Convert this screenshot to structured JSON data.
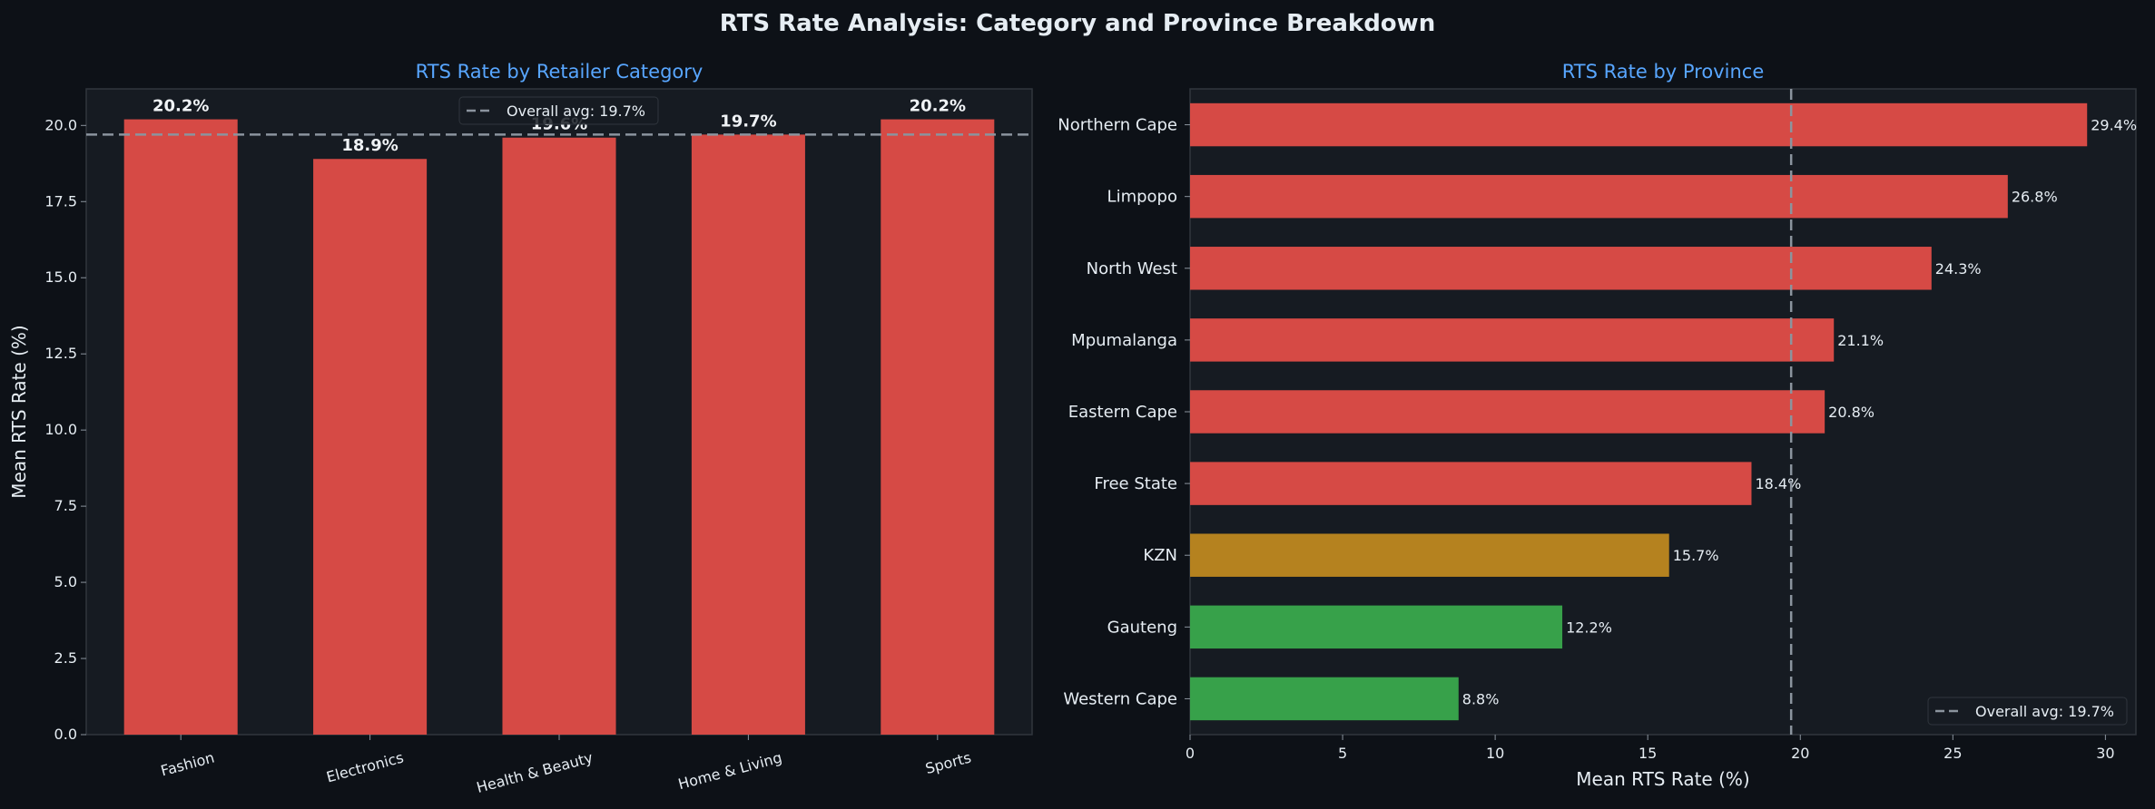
{
  "title": "RTS Rate Analysis: Category and Province Breakdown",
  "colors": {
    "background": "#0d1117",
    "panel": "#161b22",
    "title_accent": "#58a6ff",
    "red": "#d64a45",
    "amber": "#b5821f",
    "green": "#37a14a",
    "avg_line": "#8b949e",
    "text": "#e6edf3"
  },
  "chart_data": [
    {
      "type": "bar",
      "title": "RTS Rate by Retailer Category",
      "xlabel": "",
      "ylabel": "Mean RTS Rate (%)",
      "categories": [
        "Fashion",
        "Electronics",
        "Health & Beauty",
        "Home & Living",
        "Sports"
      ],
      "values": [
        20.2,
        18.9,
        19.6,
        19.7,
        20.2
      ],
      "value_labels": [
        "20.2%",
        "18.9%",
        "19.6%",
        "19.7%",
        "20.2%"
      ],
      "bar_colors": [
        "#d64a45",
        "#d64a45",
        "#d64a45",
        "#d64a45",
        "#d64a45"
      ],
      "ylim": [
        0,
        21.2
      ],
      "yticks": [
        "0.0",
        "2.5",
        "5.0",
        "7.5",
        "10.0",
        "12.5",
        "15.0",
        "17.5",
        "20.0"
      ],
      "reference_line": {
        "value": 19.7,
        "label": "Overall avg: 19.7%"
      },
      "legend": "top-center",
      "grid": false
    },
    {
      "type": "bar",
      "orientation": "horizontal",
      "title": "RTS Rate by Province",
      "xlabel": "Mean RTS Rate (%)",
      "ylabel": "",
      "categories": [
        "Northern Cape",
        "Limpopo",
        "North West",
        "Mpumalanga",
        "Eastern Cape",
        "Free State",
        "KZN",
        "Gauteng",
        "Western Cape"
      ],
      "values": [
        29.4,
        26.8,
        24.3,
        21.1,
        20.8,
        18.4,
        15.7,
        12.2,
        8.8
      ],
      "value_labels": [
        "29.4%",
        "26.8%",
        "24.3%",
        "21.1%",
        "20.8%",
        "18.4%",
        "15.7%",
        "12.2%",
        "8.8%"
      ],
      "bar_colors": [
        "#d64a45",
        "#d64a45",
        "#d64a45",
        "#d64a45",
        "#d64a45",
        "#d64a45",
        "#b5821f",
        "#37a14a",
        "#37a14a"
      ],
      "xlim": [
        0,
        31
      ],
      "xticks": [
        "0",
        "5",
        "10",
        "15",
        "20",
        "25",
        "30"
      ],
      "reference_line": {
        "value": 19.7,
        "label": "Overall avg: 19.7%"
      },
      "legend": "bottom-right",
      "grid": false
    }
  ]
}
